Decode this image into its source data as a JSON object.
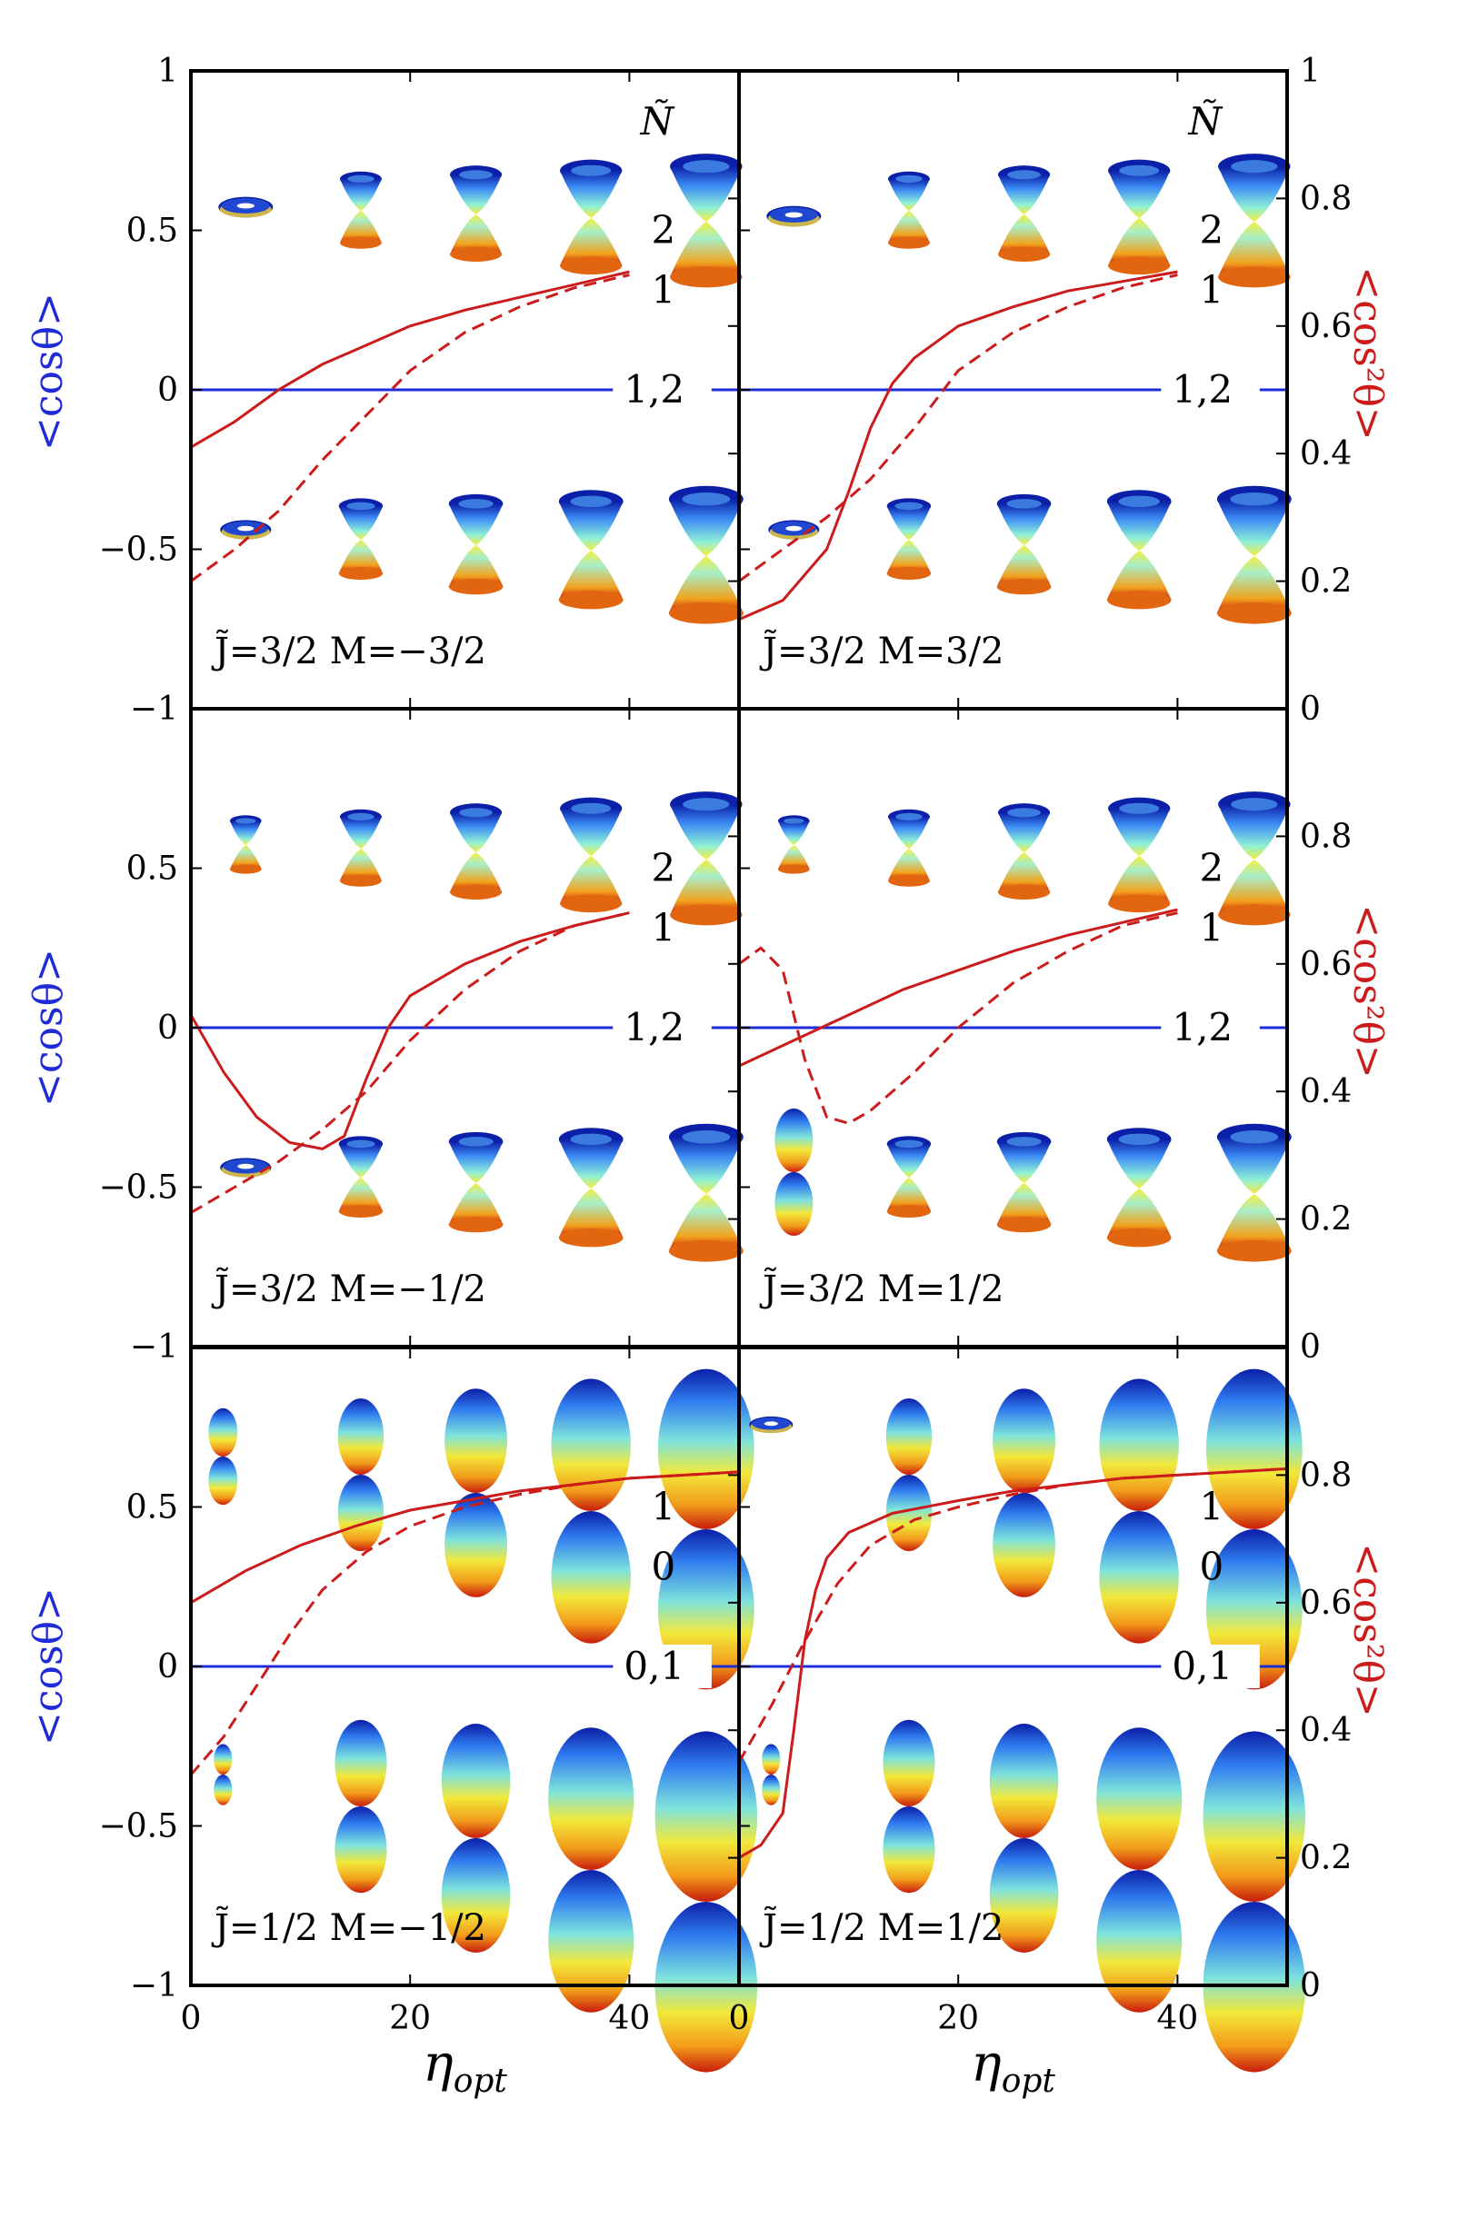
{
  "figure": {
    "xlabel": "η",
    "xlabel_sub": "opt",
    "ylabel_left": "<cosθ>",
    "ylabel_right": "<cos²θ>",
    "right_header": "Ñ",
    "colors": {
      "cos": "#1f2bd6",
      "cos2": "#cc1b1b",
      "frame": "#000000"
    }
  },
  "chart_data": [
    {
      "type": "line",
      "row": 0,
      "col": 0,
      "title": "J̃=3/2 M=−3/2",
      "xlim": [
        0,
        50
      ],
      "ylim_left": [
        -1,
        1
      ],
      "ylim_right": [
        0,
        1
      ],
      "xticks": [
        "0",
        "20",
        "40"
      ],
      "yticks_left": [
        "1",
        "0.5",
        "0",
        "−0.5",
        "−1"
      ],
      "yticks_right": [],
      "header": "Ñ",
      "curve_labels": [
        "2",
        "1",
        "1,2"
      ],
      "series": [
        {
          "axis": "left",
          "style": "solid",
          "color": "#1f2bd6",
          "x": [
            0,
            50
          ],
          "y": [
            0,
            0
          ]
        },
        {
          "axis": "right",
          "style": "solid",
          "color": "#cc1b1b",
          "x": [
            0,
            4,
            8,
            12,
            16,
            20,
            25,
            30,
            35,
            40
          ],
          "y": [
            0.41,
            0.45,
            0.5,
            0.54,
            0.57,
            0.6,
            0.625,
            0.645,
            0.665,
            0.685
          ]
        },
        {
          "axis": "right",
          "style": "dashed",
          "color": "#cc1b1b",
          "x": [
            0,
            4,
            8,
            12,
            16,
            20,
            25,
            30,
            35,
            40
          ],
          "y": [
            0.2,
            0.25,
            0.31,
            0.39,
            0.46,
            0.53,
            0.59,
            0.63,
            0.66,
            0.68
          ]
        }
      ]
    },
    {
      "type": "line",
      "row": 0,
      "col": 1,
      "title": "J̃=3/2 M=3/2",
      "xlim": [
        0,
        50
      ],
      "ylim_left": [
        -1,
        1
      ],
      "ylim_right": [
        0,
        1
      ],
      "xticks": [
        "0",
        "20",
        "40"
      ],
      "yticks_left": [],
      "yticks_right": [
        "1",
        "0.8",
        "0.6",
        "0.4",
        "0.2",
        "0"
      ],
      "header": "Ñ",
      "curve_labels": [
        "2",
        "1",
        "1,2"
      ],
      "series": [
        {
          "axis": "left",
          "style": "solid",
          "color": "#1f2bd6",
          "x": [
            0,
            50
          ],
          "y": [
            0,
            0
          ]
        },
        {
          "axis": "right",
          "style": "solid",
          "color": "#cc1b1b",
          "x": [
            0,
            4,
            8,
            10,
            12,
            14,
            16,
            20,
            25,
            30,
            35,
            40
          ],
          "y": [
            0.14,
            0.17,
            0.25,
            0.34,
            0.44,
            0.51,
            0.55,
            0.6,
            0.63,
            0.655,
            0.67,
            0.685
          ]
        },
        {
          "axis": "right",
          "style": "dashed",
          "color": "#cc1b1b",
          "x": [
            0,
            4,
            8,
            12,
            16,
            20,
            25,
            30,
            35,
            40
          ],
          "y": [
            0.2,
            0.25,
            0.3,
            0.36,
            0.44,
            0.53,
            0.59,
            0.63,
            0.66,
            0.68
          ]
        }
      ]
    },
    {
      "type": "line",
      "row": 1,
      "col": 0,
      "title": "J̃=3/2 M=−1/2",
      "xlim": [
        0,
        50
      ],
      "ylim_left": [
        -1,
        1
      ],
      "ylim_right": [
        0,
        1
      ],
      "xticks": [
        "0",
        "20",
        "40"
      ],
      "yticks_left": [
        "0.5",
        "0",
        "−0.5",
        "−1"
      ],
      "yticks_right": [],
      "curve_labels": [
        "2",
        "1",
        "1,2"
      ],
      "series": [
        {
          "axis": "left",
          "style": "solid",
          "color": "#1f2bd6",
          "x": [
            0,
            50
          ],
          "y": [
            0,
            0
          ]
        },
        {
          "axis": "right",
          "style": "solid",
          "color": "#cc1b1b",
          "x": [
            0,
            3,
            6,
            9,
            12,
            14,
            16,
            18,
            20,
            25,
            30,
            35,
            40
          ],
          "y": [
            0.52,
            0.43,
            0.36,
            0.32,
            0.31,
            0.33,
            0.42,
            0.5,
            0.55,
            0.6,
            0.635,
            0.66,
            0.68
          ]
        },
        {
          "axis": "right",
          "style": "dashed",
          "color": "#cc1b1b",
          "x": [
            0,
            4,
            8,
            12,
            16,
            20,
            25,
            30,
            35,
            40
          ],
          "y": [
            0.21,
            0.25,
            0.29,
            0.34,
            0.4,
            0.48,
            0.56,
            0.62,
            0.66,
            0.68
          ]
        }
      ]
    },
    {
      "type": "line",
      "row": 1,
      "col": 1,
      "title": "J̃=3/2 M=1/2",
      "xlim": [
        0,
        50
      ],
      "ylim_left": [
        -1,
        1
      ],
      "ylim_right": [
        0,
        1
      ],
      "xticks": [
        "0",
        "20",
        "40"
      ],
      "yticks_left": [],
      "yticks_right": [
        "0.8",
        "0.6",
        "0.4",
        "0.2",
        "0"
      ],
      "curve_labels": [
        "2",
        "1",
        "1,2"
      ],
      "series": [
        {
          "axis": "left",
          "style": "solid",
          "color": "#1f2bd6",
          "x": [
            0,
            50
          ],
          "y": [
            0,
            0
          ]
        },
        {
          "axis": "right",
          "style": "solid",
          "color": "#cc1b1b",
          "x": [
            0,
            5,
            10,
            15,
            20,
            25,
            30,
            35,
            40
          ],
          "y": [
            0.44,
            0.48,
            0.52,
            0.56,
            0.59,
            0.62,
            0.645,
            0.665,
            0.685
          ]
        },
        {
          "axis": "right",
          "style": "dashed",
          "color": "#cc1b1b",
          "x": [
            0,
            2,
            4,
            6,
            8,
            10,
            12,
            16,
            20,
            25,
            30,
            35,
            40
          ],
          "y": [
            0.6,
            0.625,
            0.59,
            0.45,
            0.36,
            0.35,
            0.37,
            0.43,
            0.5,
            0.57,
            0.62,
            0.66,
            0.68
          ]
        }
      ]
    },
    {
      "type": "line",
      "row": 2,
      "col": 0,
      "title": "J̃=1/2 M=−1/2",
      "xlim": [
        0,
        50
      ],
      "ylim_left": [
        -1,
        1
      ],
      "ylim_right": [
        0,
        1
      ],
      "xticks": [
        "0",
        "20",
        "40"
      ],
      "yticks_left": [
        "0.5",
        "0",
        "−0.5",
        "−1"
      ],
      "yticks_right": [],
      "curve_labels": [
        "1",
        "0",
        "0,1"
      ],
      "series": [
        {
          "axis": "left",
          "style": "solid",
          "color": "#1f2bd6",
          "x": [
            0,
            50
          ],
          "y": [
            0,
            0
          ]
        },
        {
          "axis": "right",
          "style": "solid",
          "color": "#cc1b1b",
          "x": [
            0,
            5,
            10,
            15,
            20,
            25,
            30,
            35,
            40,
            45,
            50
          ],
          "y": [
            0.6,
            0.65,
            0.69,
            0.72,
            0.745,
            0.76,
            0.775,
            0.785,
            0.795,
            0.8,
            0.805
          ]
        },
        {
          "axis": "right",
          "style": "dashed",
          "color": "#cc1b1b",
          "x": [
            0,
            3,
            6,
            9,
            12,
            16,
            20,
            25,
            30,
            35,
            40,
            45,
            50
          ],
          "y": [
            0.33,
            0.39,
            0.47,
            0.55,
            0.62,
            0.68,
            0.72,
            0.75,
            0.77,
            0.785,
            0.795,
            0.8,
            0.805
          ]
        }
      ]
    },
    {
      "type": "line",
      "row": 2,
      "col": 1,
      "title": "J̃=1/2 M=1/2",
      "xlim": [
        0,
        50
      ],
      "ylim_left": [
        -1,
        1
      ],
      "ylim_right": [
        0,
        1
      ],
      "xticks": [
        "0",
        "20",
        "40"
      ],
      "yticks_left": [],
      "yticks_right": [
        "0.8",
        "0.6",
        "0.4",
        "0.2",
        "0"
      ],
      "curve_labels": [
        "1",
        "0",
        "0,1"
      ],
      "series": [
        {
          "axis": "left",
          "style": "solid",
          "color": "#1f2bd6",
          "x": [
            0,
            50
          ],
          "y": [
            0,
            0
          ]
        },
        {
          "axis": "right",
          "style": "solid",
          "color": "#cc1b1b",
          "x": [
            0,
            2,
            4,
            5,
            6,
            7,
            8,
            10,
            14,
            20,
            25,
            30,
            35,
            40,
            45,
            50
          ],
          "y": [
            0.2,
            0.22,
            0.27,
            0.4,
            0.54,
            0.62,
            0.67,
            0.71,
            0.74,
            0.76,
            0.775,
            0.785,
            0.795,
            0.8,
            0.805,
            0.81
          ]
        },
        {
          "axis": "right",
          "style": "dashed",
          "color": "#cc1b1b",
          "x": [
            0,
            3,
            6,
            9,
            12,
            16,
            20,
            25,
            30,
            35,
            40,
            45,
            50
          ],
          "y": [
            0.35,
            0.44,
            0.54,
            0.63,
            0.69,
            0.73,
            0.75,
            0.77,
            0.785,
            0.795,
            0.8,
            0.805,
            0.81
          ]
        }
      ]
    }
  ]
}
